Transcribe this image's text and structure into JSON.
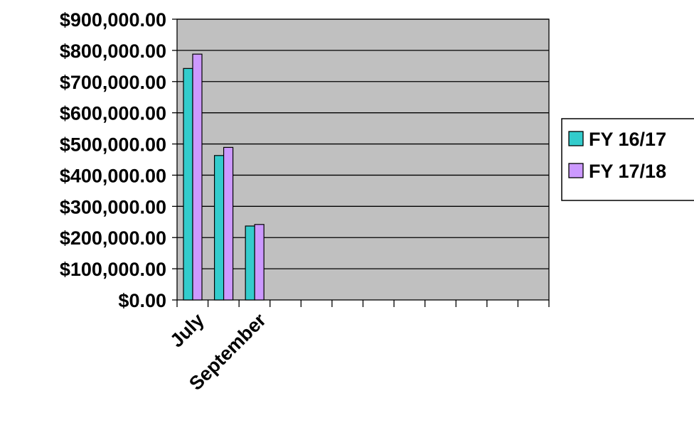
{
  "chart_data": {
    "type": "bar",
    "categories": [
      "July",
      "",
      "September",
      "",
      "",
      "",
      "",
      "",
      "",
      "",
      "",
      ""
    ],
    "visible_category_labels": [
      "July",
      "September"
    ],
    "y_tick_labels": [
      "$0.00",
      "$100,000.00",
      "$200,000.00",
      "$300,000.00",
      "$400,000.00",
      "$500,000.00",
      "$600,000.00",
      "$700,000.00",
      "$800,000.00",
      "$900,000.00"
    ],
    "ylim": [
      0,
      900000
    ],
    "y_step": 100000,
    "series": [
      {
        "name": "FY 16/17",
        "color": "#33cccc",
        "values": [
          742000,
          463000,
          237000,
          null,
          null,
          null,
          null,
          null,
          null,
          null,
          null,
          null
        ]
      },
      {
        "name": "FY 17/18",
        "color": "#cc99ff",
        "values": [
          788000,
          489000,
          242000,
          null,
          null,
          null,
          null,
          null,
          null,
          null,
          null,
          null
        ]
      }
    ],
    "plot_background": "#c0c0c0",
    "grid": true,
    "legend_position": "right",
    "title": "",
    "xlabel": "",
    "ylabel": ""
  }
}
